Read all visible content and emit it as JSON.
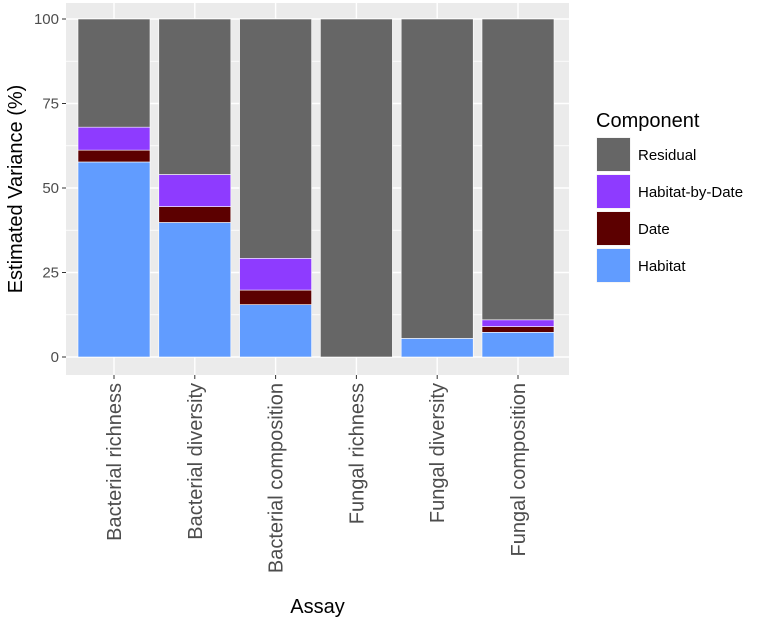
{
  "chart_data": {
    "type": "bar",
    "stacked": true,
    "title": "",
    "xlabel": "Assay",
    "ylabel": "Estimated Variance (%)",
    "ylim": [
      0,
      100
    ],
    "yticks": [
      0,
      25,
      50,
      75,
      100
    ],
    "categories": [
      "Bacterial richness",
      "Bacterial diversity",
      "Bacterial composition",
      "Fungal richness",
      "Fungal diversity",
      "Fungal composition"
    ],
    "series": [
      {
        "name": "Habitat",
        "color": "#619CFF",
        "values": [
          57.7,
          39.8,
          15.5,
          0.0,
          5.5,
          7.3
        ]
      },
      {
        "name": "Date",
        "color": "#5C0000",
        "values": [
          3.5,
          4.7,
          4.3,
          0.0,
          0.0,
          1.7
        ]
      },
      {
        "name": "Habitat-by-Date",
        "color": "#8E3BFF",
        "values": [
          6.8,
          9.5,
          9.4,
          0.0,
          0.0,
          2.0
        ]
      },
      {
        "name": "Residual",
        "color": "#666666",
        "values": [
          32.0,
          46.0,
          70.8,
          100.0,
          94.5,
          89.0
        ]
      }
    ],
    "legend": {
      "title": "Component",
      "position": "right",
      "order": [
        "Residual",
        "Habitat-by-Date",
        "Date",
        "Habitat"
      ]
    },
    "grid": true,
    "panel_background": "#EBEBEB",
    "grid_color": "#FFFFFF"
  }
}
